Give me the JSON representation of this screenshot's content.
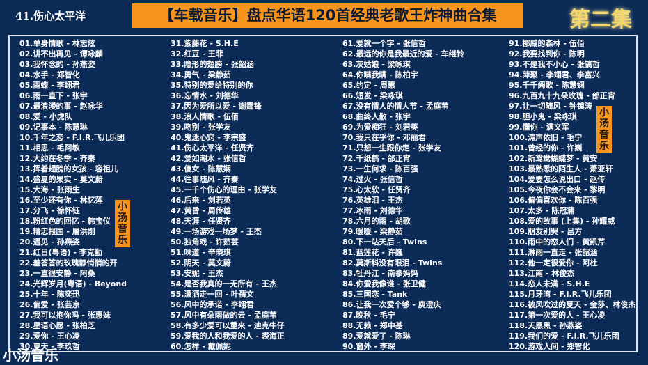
{
  "now_playing": "41.伤心太平洋",
  "title": "【车载音乐】盘点华语120首经典老歌王炸神曲合集",
  "episode": "第二集",
  "badge": "小汤音乐",
  "watermark": "小汤音乐",
  "colors": {
    "background": "#0c2b57",
    "accent": "#f7941d",
    "episode": "#f5d66a"
  },
  "columns": [
    [
      "01.单身情歌 - 林志炫",
      "02.讲不出再见 - 谭咏麟",
      "03.我怀念的 - 孙燕姿",
      "04.水手 - 郑智化",
      "05.雨蝶 - 李翊君",
      "06.雨一直下 - 张宇",
      "07.最浪漫的事 - 赵咏华",
      "08.爱 - 小虎队",
      "09.记事本 - 陈慧琳",
      "10.千年之恋 - F.I.R.飞儿乐团",
      "11.相思 - 毛阿敏",
      "12.大约在冬季 - 齐秦",
      "13.挥着翅膀的女孩 - 容祖儿",
      "14.盛夏的果实 - 莫文蔚",
      "15.大海 - 张雨生",
      "16.至少还有你 - 林忆莲",
      "17.分飞 - 徐怀钰",
      "18.粉红色的回忆 - 韩宝仪",
      "19.精忠报国 - 屠洪刚",
      "20.遇见 - 孙燕姿",
      "21.红日(粤语) - 李克勤",
      "22.羞答答的玫瑰静悄悄的开",
      "23.一直很安静 - 阿桑",
      "24.光辉岁月(粤语) - Beyond",
      "25.十年 - 陈奕迅",
      "26.偏爱 - 张芸京",
      "27.我可以抱你吗 - 张惠妹",
      "28.星语心愿 - 张柏芝",
      "29.爱你 - 王心凌",
      "30.夏天 - 李玖哲"
    ],
    [
      "31.紫藤花 - S.H.E",
      "32.红豆 - 王菲",
      "33.隐形的翅膀 - 张韶涵",
      "34.勇气 - 梁静茹",
      "35.特别的爱给特别的你",
      "36.忘情水 - 刘德华",
      "37.因为爱所以爱 - 谢霆锋",
      "38.浪人情歌 - 伍佰",
      "39.吻别 - 张学友",
      "40.鬼迷心窍 - 李宗盛",
      "41.伤心太平洋 - 任贤齐",
      "42.爱如潮水 - 张信哲",
      "43.傻女 - 陈慧娴",
      "44.往事随风 - 齐秦",
      "45.一千个伤心的理由 - 张学友",
      "46.后来 - 刘若英",
      "47.黄昏 - 周传雄",
      "48.天涯 - 任贤齐",
      "49.一场游戏一场梦 - 王杰",
      "50.独角戏 - 许茹芸",
      "51.味道 - 辛晓琪",
      "52.阴天 - 莫文蔚",
      "53.安妮 - 王杰",
      "54.是否我真的一无所有 - 王杰",
      "55.潇洒走一回 - 叶蒨文",
      "56.风中的承诺 - 李翊君",
      "57.风中有朵雨做的云 - 孟庭苇",
      "58.有多少爱可以重来 - 迪克牛仔",
      "59.爱我的人和我爱的人 - 裘海正",
      "60.怎样 - 戴佩妮"
    ],
    [
      "61.爱就一个字 - 张信哲",
      "62.最远的你是我最近的爱 - 车继铃",
      "63.灰姑娘 - 梁咏琪",
      "64.你瞒我瞒 - 陈柏宇",
      "65.约定 - 周蕙",
      "66.短发 - 梁咏琪",
      "67.没有情人的情人节 - 孟庭苇",
      "68.曲终人散 - 张宇",
      "69.为爱痴狂 - 刘若英",
      "70.我只在乎你 - 邓丽君",
      "71.只想一生跟你走 - 张学友",
      "72.千纸鹤 - 邰正宵",
      "73.一生何求 - 陈百强",
      "74.过火 - 张信哲",
      "75.心太软 - 任贤齐",
      "76.英雄泪 - 王杰",
      "77.冰雨 - 刘德华",
      "78.六月的雨 - 胡歌",
      "79.暖暖 - 梁静茹",
      "80.下一站天后 - Twins",
      "81.蓝莲花 - 许巍",
      "82.莫斯科没有眼泪 - Twins",
      "83.牡丹江 - 南拳妈妈",
      "84.你爱我像谁 - 张卫健",
      "85.三国恋 - Tank",
      "86.让我一次爱个够 - 庾澄庆",
      "87.晚秋 - 毛宁",
      "88.无赖 - 郑中基",
      "89.爱就爱了 - 陈琳",
      "90.窗外 - 李琛"
    ],
    [
      "91.挪威的森林 - 伍佰",
      "92.我要找到你 - 陈明",
      "93.不是我不小心 - 张镐哲",
      "94.萍聚 - 李翊君、李富兴",
      "95.千千阙歌 - 陈慧娴",
      "96.九百九十九朵玫瑰 - 邰正宵",
      "97.让一切随风 - 钟镇涛",
      "98.胆小鬼 - 梁咏琪",
      "99.懂你 - 满文军",
      "100.涛声依旧 - 毛宁",
      "101.曾经的你 - 许巍",
      "102.新鸳鸯蝴蝶梦 - 黄安",
      "103.最熟悉的陌生人 - 萧亚轩",
      "104.爱要怎么说出口 - 赵传",
      "105.今夜你会不会来 - 黎明",
      "106.偏偏喜欢你 - 陈百强",
      "107.太多 - 陈冠蒲",
      "108.爱的故事 (上集) - 孙耀威",
      "109.朋友别哭 - 吕方",
      "110.雨中的恋人们 - 黄凯芹",
      "111.淋雨一直走 - 张韶涵",
      "112.他一定很爱你 - 阿杜",
      "113.江南 - 林俊杰",
      "114.恋人未满 - S.H.E",
      "115.月牙湾 - F.I.R.飞儿乐团",
      "116.被风吹过的夏天 - 金莎、林俊杰",
      "117.第一次爱的人 - 王心凌",
      "118.天黑黑 - 孙燕姿",
      "119.我们的爱 - F.I.R.飞儿乐团",
      "120.游戏人间 - 郑智化"
    ]
  ]
}
